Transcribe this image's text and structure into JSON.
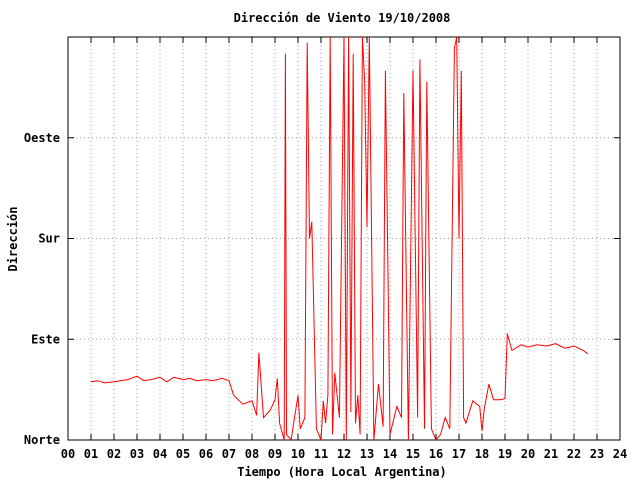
{
  "colors": {
    "series": "#ff0000",
    "background": "#ffffff",
    "grid": "#a0a0a0"
  },
  "chart_data": {
    "type": "line",
    "title": "Dirección de Viento 19/10/2008",
    "xlabel": "Tiempo (Hora Local Argentina)",
    "ylabel": "Dirección",
    "xlim": [
      0,
      24
    ],
    "ylim": [
      0,
      360
    ],
    "grid": true,
    "x_ticks": [
      "00",
      "01",
      "02",
      "03",
      "04",
      "05",
      "06",
      "07",
      "08",
      "09",
      "10",
      "11",
      "12",
      "13",
      "14",
      "15",
      "16",
      "17",
      "18",
      "19",
      "20",
      "21",
      "22",
      "23",
      "24"
    ],
    "y_ticks": [
      {
        "label": "Norte",
        "value": 0
      },
      {
        "label": "Este",
        "value": 90
      },
      {
        "label": "Sur",
        "value": 180
      },
      {
        "label": "Oeste",
        "value": 270
      }
    ],
    "series": [
      {
        "color": "#ff0000",
        "points": [
          [
            1.0,
            52
          ],
          [
            1.3,
            53
          ],
          [
            1.6,
            51
          ],
          [
            2.0,
            52
          ],
          [
            2.3,
            53
          ],
          [
            2.6,
            54
          ],
          [
            3.0,
            57
          ],
          [
            3.3,
            53
          ],
          [
            3.6,
            54
          ],
          [
            4.0,
            56
          ],
          [
            4.3,
            52
          ],
          [
            4.6,
            56
          ],
          [
            5.0,
            54
          ],
          [
            5.3,
            55
          ],
          [
            5.6,
            53
          ],
          [
            6.0,
            54
          ],
          [
            6.3,
            53
          ],
          [
            6.7,
            55
          ],
          [
            7.0,
            53
          ],
          [
            7.2,
            40
          ],
          [
            7.6,
            32
          ],
          [
            8.0,
            35
          ],
          [
            8.2,
            22
          ],
          [
            8.3,
            78
          ],
          [
            8.5,
            20
          ],
          [
            8.8,
            27
          ],
          [
            9.0,
            36
          ],
          [
            9.1,
            55
          ],
          [
            9.2,
            15
          ],
          [
            9.4,
            0
          ],
          [
            9.45,
            345
          ],
          [
            9.5,
            5
          ],
          [
            9.7,
            0
          ],
          [
            10.0,
            40
          ],
          [
            10.1,
            10
          ],
          [
            10.3,
            20
          ],
          [
            10.4,
            355
          ],
          [
            10.5,
            180
          ],
          [
            10.6,
            195
          ],
          [
            10.8,
            10
          ],
          [
            11.0,
            0
          ],
          [
            11.1,
            35
          ],
          [
            11.2,
            15
          ],
          [
            11.3,
            40
          ],
          [
            11.4,
            360
          ],
          [
            11.5,
            5
          ],
          [
            11.6,
            60
          ],
          [
            11.8,
            20
          ],
          [
            12.0,
            360
          ],
          [
            12.1,
            0
          ],
          [
            12.2,
            360
          ],
          [
            12.3,
            25
          ],
          [
            12.4,
            345
          ],
          [
            12.5,
            15
          ],
          [
            12.6,
            40
          ],
          [
            12.7,
            5
          ],
          [
            12.8,
            360
          ],
          [
            12.9,
            320
          ],
          [
            13.0,
            190
          ],
          [
            13.1,
            360
          ],
          [
            13.2,
            180
          ],
          [
            13.3,
            0
          ],
          [
            13.5,
            50
          ],
          [
            13.7,
            12
          ],
          [
            13.8,
            330
          ],
          [
            14.0,
            5
          ],
          [
            14.3,
            30
          ],
          [
            14.5,
            20
          ],
          [
            14.6,
            310
          ],
          [
            14.8,
            0
          ],
          [
            15.0,
            330
          ],
          [
            15.2,
            20
          ],
          [
            15.3,
            340
          ],
          [
            15.5,
            10
          ],
          [
            15.6,
            320
          ],
          [
            15.8,
            10
          ],
          [
            16.0,
            0
          ],
          [
            16.2,
            5
          ],
          [
            16.4,
            20
          ],
          [
            16.6,
            10
          ],
          [
            16.8,
            350
          ],
          [
            16.9,
            360
          ],
          [
            17.0,
            180
          ],
          [
            17.1,
            330
          ],
          [
            17.2,
            20
          ],
          [
            17.3,
            15
          ],
          [
            17.6,
            35
          ],
          [
            17.9,
            30
          ],
          [
            18.0,
            8
          ],
          [
            18.1,
            28
          ],
          [
            18.3,
            50
          ],
          [
            18.5,
            36
          ],
          [
            18.8,
            36
          ],
          [
            19.0,
            37
          ],
          [
            19.1,
            95
          ],
          [
            19.3,
            80
          ],
          [
            19.7,
            85
          ],
          [
            20.0,
            83
          ],
          [
            20.4,
            85
          ],
          [
            20.8,
            84
          ],
          [
            21.2,
            86
          ],
          [
            21.6,
            82
          ],
          [
            22.0,
            84
          ],
          [
            22.4,
            80
          ],
          [
            22.6,
            77
          ]
        ]
      }
    ]
  }
}
